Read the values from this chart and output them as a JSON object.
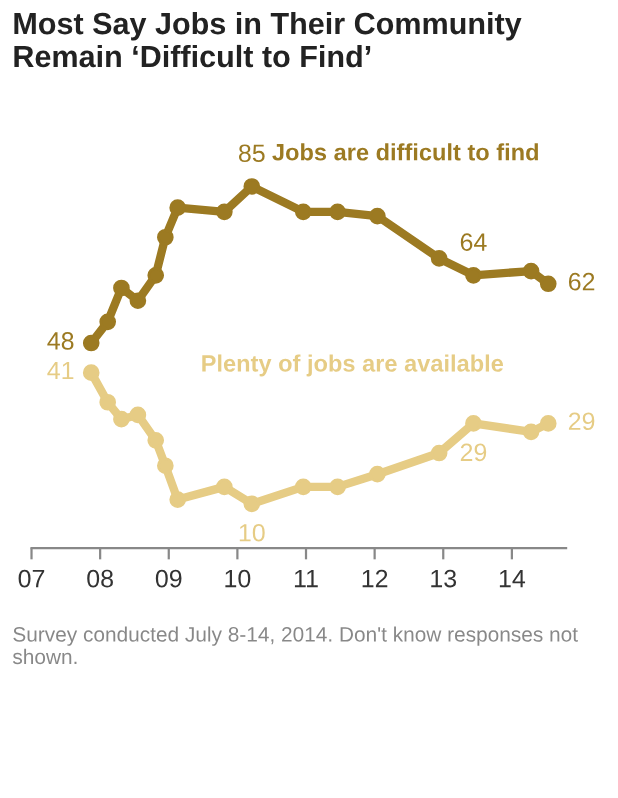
{
  "chart_data": {
    "type": "line",
    "title": "Most Say Jobs in Their Community\nRemain ‘Difficult to Find’",
    "annotations": [
      "Survey conducted July 8-14, 2014. Don't know responses not shown."
    ],
    "x": [
      2007.87,
      2008.11,
      2008.31,
      2008.55,
      2008.81,
      2008.95,
      2009.13,
      2009.81,
      2010.21,
      2010.96,
      2011.46,
      2012.04,
      2012.94,
      2013.44,
      2014.28,
      2014.53
    ],
    "series": [
      {
        "name": "Jobs are difficult to find",
        "color": "#9c7a22",
        "values": [
          48,
          53,
          61,
          58,
          64,
          73,
          80,
          79,
          85,
          79,
          79,
          78,
          68,
          64,
          65,
          62
        ],
        "value_labels": [
          "48",
          null,
          null,
          null,
          null,
          null,
          null,
          null,
          "85",
          null,
          null,
          null,
          null,
          "64",
          null,
          "62"
        ]
      },
      {
        "name": "Plenty of jobs are available",
        "color": "#e6cc85",
        "values": [
          41,
          34,
          30,
          31,
          25,
          19,
          11,
          14,
          10,
          14,
          14,
          17,
          22,
          29,
          27,
          29
        ],
        "value_labels": [
          "41",
          null,
          null,
          null,
          null,
          null,
          null,
          null,
          "10",
          null,
          null,
          null,
          null,
          "29",
          null,
          "29"
        ]
      }
    ],
    "xlim": [
      2007,
      2014.79
    ],
    "xticks": [
      {
        "value": 2007,
        "label": "07"
      },
      {
        "value": 2008,
        "label": "08"
      },
      {
        "value": 2009,
        "label": "09"
      },
      {
        "value": 2010,
        "label": "10"
      },
      {
        "value": 2011,
        "label": "11"
      },
      {
        "value": 2012,
        "label": "12"
      },
      {
        "value": 2013,
        "label": "13"
      },
      {
        "value": 2014,
        "label": "14"
      }
    ],
    "tick_labels": "x",
    "grid": false,
    "legend": false,
    "marker": "circle",
    "line_style": "solid"
  }
}
